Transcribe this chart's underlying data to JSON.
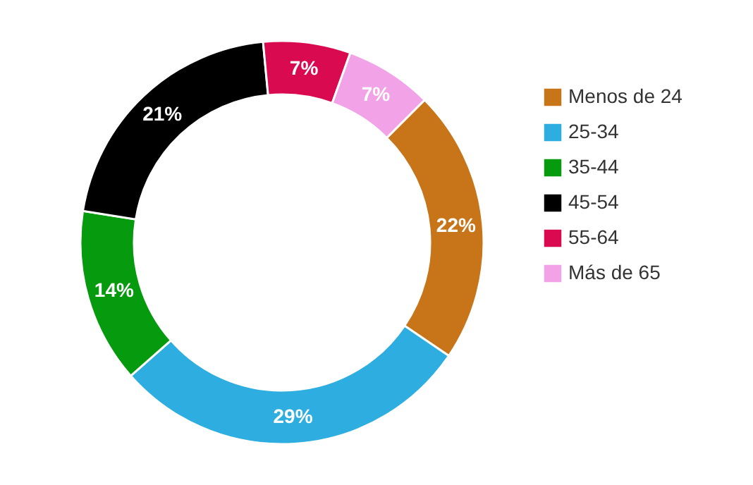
{
  "chart_data": {
    "type": "donut",
    "categories": [
      "Menos de 24",
      "25-34",
      "35-44",
      "45-54",
      "55-64",
      "Más de 65"
    ],
    "values": [
      22,
      29,
      14,
      21,
      7,
      7
    ],
    "value_labels": [
      "22%",
      "29%",
      "14%",
      "21%",
      "7%",
      "7%"
    ],
    "colors": [
      "#c8751a",
      "#2eaee0",
      "#069a0e",
      "#000000",
      "#d90a50",
      "#f2a3e8"
    ],
    "legend": "right"
  }
}
